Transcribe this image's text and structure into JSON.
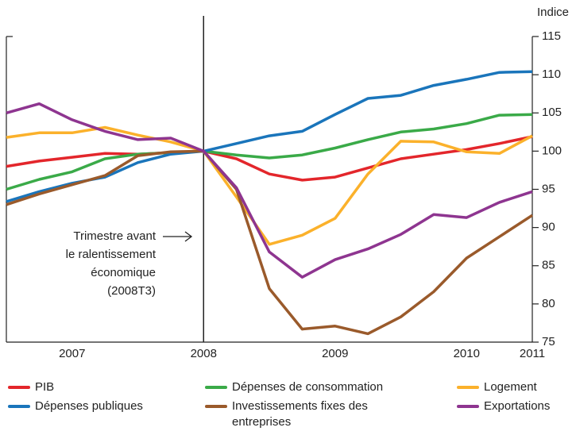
{
  "chart_data": {
    "type": "line",
    "y_label": "Indice",
    "x": [
      0,
      1,
      2,
      3,
      4,
      5,
      6,
      7,
      8,
      9,
      10,
      11,
      12,
      13,
      14,
      15,
      16
    ],
    "xlim": [
      0,
      16
    ],
    "xticks": [
      {
        "value": 2,
        "label": "2007"
      },
      {
        "value": 6,
        "label": "2008"
      },
      {
        "value": 10,
        "label": "2009"
      },
      {
        "value": 14,
        "label": "2010"
      },
      {
        "value": 16,
        "label": "2011"
      }
    ],
    "ylim": [
      75,
      115
    ],
    "yticks": [
      75,
      80,
      85,
      90,
      95,
      100,
      105,
      110,
      115
    ],
    "vline": 6,
    "annotation": [
      "Trimestre avant",
      "le ralentissement",
      "économique",
      "(2008T3)"
    ],
    "series": [
      {
        "name": "PIB",
        "color": "#e3262b",
        "values": [
          98,
          98.7,
          99.2,
          99.7,
          99.6,
          99.8,
          100,
          99,
          97,
          96.2,
          96.6,
          97.8,
          99,
          99.6,
          100.2,
          101,
          101.9
        ]
      },
      {
        "name": "Dépenses de consommation",
        "color": "#3aaa48",
        "values": [
          95,
          96.3,
          97.3,
          99,
          99.6,
          99.8,
          100,
          99.5,
          99.1,
          99.5,
          100.4,
          101.5,
          102.5,
          102.9,
          103.6,
          104.7,
          104.8
        ]
      },
      {
        "name": "Logement",
        "color": "#fbb12b",
        "values": [
          101.8,
          102.4,
          102.4,
          103.1,
          102.1,
          101.2,
          100,
          94,
          87.8,
          89,
          91.2,
          97,
          101.3,
          101.2,
          99.9,
          99.7,
          102
        ]
      },
      {
        "name": "Dépenses publiques",
        "color": "#1a75bb",
        "values": [
          93.4,
          94.7,
          95.8,
          96.6,
          98.5,
          99.6,
          100,
          101,
          102,
          102.6,
          104.8,
          106.9,
          107.3,
          108.6,
          109.4,
          110.3,
          110.4
        ]
      },
      {
        "name": "Investissements fixes des entreprises",
        "color": "#9a5a2b",
        "values": [
          93,
          94.4,
          95.6,
          96.8,
          99.4,
          99.9,
          100,
          95,
          82,
          76.7,
          77.1,
          76.1,
          78.3,
          81.6,
          86,
          88.8,
          91.6
        ]
      },
      {
        "name": "Exportations",
        "color": "#8e3590",
        "values": [
          105,
          106.2,
          104.1,
          102.6,
          101.5,
          101.7,
          100,
          95.2,
          86.8,
          83.5,
          85.8,
          87.2,
          89.1,
          91.7,
          91.3,
          93.3,
          94.7
        ]
      }
    ]
  }
}
